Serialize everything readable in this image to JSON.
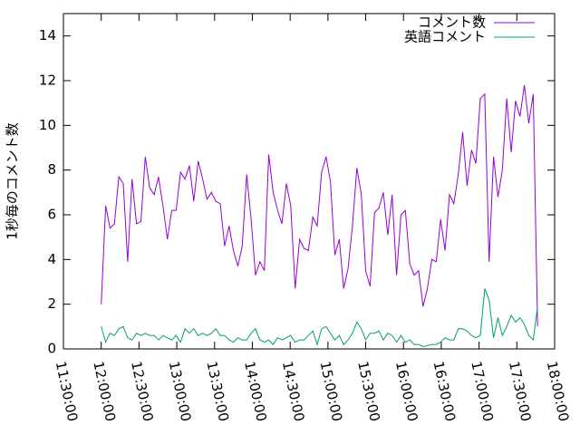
{
  "chart_data": {
    "type": "line",
    "ylabel": "1秒毎のコメント数",
    "ylim": [
      0,
      15
    ],
    "yticks": [
      0,
      2,
      4,
      6,
      8,
      10,
      12,
      14
    ],
    "xlim": [
      "11:30:00",
      "18:00:00"
    ],
    "xticks": [
      "11:30:00",
      "12:00:00",
      "12:30:00",
      "13:00:00",
      "13:30:00",
      "14:00:00",
      "14:30:00",
      "15:00:00",
      "15:30:00",
      "16:00:00",
      "16:30:00",
      "17:00:00",
      "17:30:00",
      "18:00:00"
    ],
    "legend": "top-right",
    "x": [
      "12:00:00",
      "12:03:30",
      "12:07:00",
      "12:10:30",
      "12:14:00",
      "12:17:30",
      "12:21:00",
      "12:24:30",
      "12:28:00",
      "12:31:30",
      "12:35:00",
      "12:38:30",
      "12:42:00",
      "12:45:30",
      "12:49:00",
      "12:52:30",
      "12:56:00",
      "12:59:30",
      "13:03:00",
      "13:06:30",
      "13:10:00",
      "13:13:30",
      "13:17:00",
      "13:20:30",
      "13:24:00",
      "13:27:30",
      "13:31:00",
      "13:34:30",
      "13:38:00",
      "13:41:30",
      "13:45:00",
      "13:48:30",
      "13:52:00",
      "13:55:30",
      "13:59:00",
      "14:02:30",
      "14:06:00",
      "14:09:30",
      "14:13:00",
      "14:16:30",
      "14:20:00",
      "14:23:30",
      "14:27:00",
      "14:30:30",
      "14:34:00",
      "14:37:30",
      "14:41:00",
      "14:44:30",
      "14:48:00",
      "14:51:30",
      "14:55:00",
      "14:58:30",
      "15:02:00",
      "15:05:30",
      "15:09:00",
      "15:12:30",
      "15:16:00",
      "15:19:30",
      "15:23:00",
      "15:26:30",
      "15:30:00",
      "15:33:30",
      "15:37:00",
      "15:40:30",
      "15:44:00",
      "15:47:30",
      "15:51:00",
      "15:54:30",
      "15:58:00",
      "16:01:30",
      "16:05:00",
      "16:08:30",
      "16:12:00",
      "16:15:30",
      "16:19:00",
      "16:22:30",
      "16:26:00",
      "16:29:30",
      "16:33:00",
      "16:36:30",
      "16:40:00",
      "16:43:30",
      "16:47:00",
      "16:50:30",
      "16:54:00",
      "16:57:30",
      "17:01:00",
      "17:04:30",
      "17:08:00",
      "17:11:30",
      "17:15:00",
      "17:18:30",
      "17:22:00",
      "17:25:30",
      "17:29:00",
      "17:32:30",
      "17:36:00",
      "17:39:30",
      "17:43:00",
      "17:46:30"
    ],
    "series": [
      {
        "name": "コメント数",
        "color": "#9400d3",
        "values": [
          2.0,
          6.4,
          5.4,
          5.6,
          7.7,
          7.4,
          3.9,
          7.6,
          5.6,
          5.7,
          8.6,
          7.2,
          6.9,
          7.7,
          6.4,
          4.9,
          6.2,
          6.2,
          7.9,
          7.6,
          8.2,
          6.6,
          8.4,
          7.6,
          6.7,
          7.0,
          6.6,
          6.5,
          4.6,
          5.5,
          4.4,
          3.7,
          4.6,
          7.8,
          5.8,
          3.3,
          3.9,
          3.5,
          8.7,
          7.0,
          6.2,
          5.6,
          7.4,
          6.4,
          2.7,
          4.9,
          4.5,
          4.4,
          5.9,
          5.5,
          7.9,
          8.6,
          7.5,
          4.2,
          4.9,
          2.7,
          3.6,
          5.5,
          8.1,
          6.9,
          3.5,
          2.8,
          6.1,
          6.3,
          7.0,
          5.1,
          6.9,
          3.3,
          6.0,
          6.2,
          3.8,
          3.3,
          3.5,
          1.9,
          2.7,
          4.0,
          3.9,
          5.8,
          4.4,
          6.9,
          6.5,
          7.8,
          9.7,
          7.3,
          8.9,
          8.3,
          11.2,
          11.4,
          3.9,
          8.6,
          6.8,
          8.0,
          11.2,
          8.8,
          11.1,
          10.4,
          11.8,
          10.1,
          11.4,
          1.0
        ]
      },
      {
        "name": "英語コメント",
        "color": "#009e73",
        "values": [
          1.0,
          0.3,
          0.7,
          0.6,
          0.9,
          1.0,
          0.5,
          0.4,
          0.7,
          0.6,
          0.7,
          0.6,
          0.6,
          0.4,
          0.6,
          0.5,
          0.4,
          0.6,
          0.3,
          0.9,
          0.7,
          0.9,
          0.6,
          0.7,
          0.6,
          0.7,
          0.9,
          0.6,
          0.6,
          0.4,
          0.3,
          0.5,
          0.4,
          0.4,
          0.7,
          0.9,
          0.4,
          0.3,
          0.4,
          0.2,
          0.5,
          0.4,
          0.5,
          0.6,
          0.3,
          0.4,
          0.4,
          0.6,
          0.8,
          0.2,
          0.9,
          1.0,
          0.7,
          0.4,
          0.6,
          0.2,
          0.4,
          0.7,
          1.2,
          0.9,
          0.4,
          0.7,
          0.7,
          0.8,
          0.4,
          0.7,
          0.6,
          0.3,
          0.6,
          0.3,
          0.4,
          0.2,
          0.2,
          0.1,
          0.15,
          0.2,
          0.2,
          0.3,
          0.5,
          0.4,
          0.4,
          0.9,
          0.9,
          0.8,
          0.6,
          0.5,
          0.6,
          2.7,
          2.2,
          0.5,
          1.4,
          0.6,
          1.0,
          1.5,
          1.2,
          1.4,
          1.1,
          0.6,
          0.4,
          1.9
        ]
      }
    ]
  }
}
